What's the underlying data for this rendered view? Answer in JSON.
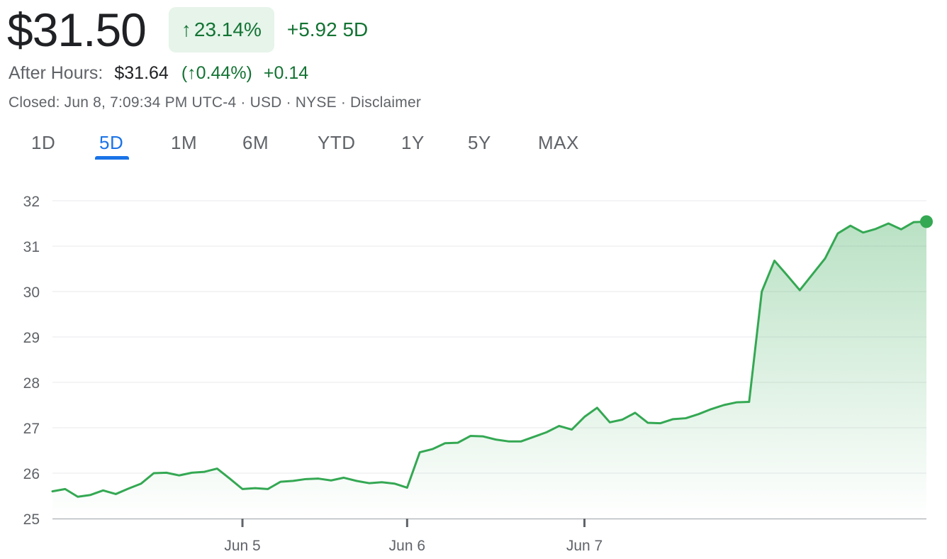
{
  "quote": {
    "price": "$31.50",
    "change_arrow": "↑",
    "change_pct": "23.14%",
    "change_abs": "+5.92 5D",
    "after_hours_label": "After Hours:",
    "after_hours_price": "$31.64",
    "after_hours_pct": "(↑0.44%)",
    "after_hours_change": "+0.14",
    "meta": "Closed: Jun 8, 7:09:34 PM UTC-4 · USD · NYSE · Disclaimer"
  },
  "tabs": [
    "1D",
    "5D",
    "1M",
    "6M",
    "YTD",
    "1Y",
    "5Y",
    "MAX"
  ],
  "active_tab": "5D",
  "colors": {
    "positive": "#137333",
    "line": "#34a853",
    "accent": "#1a73e8",
    "grid": "#e8eaed"
  },
  "chart_data": {
    "type": "area",
    "ylim": [
      25,
      32
    ],
    "y_ticks": [
      "25",
      "26",
      "27",
      "28",
      "29",
      "30",
      "31",
      "32"
    ],
    "x_tick_labels": [
      {
        "label": "Jun 5",
        "at_point": 15
      },
      {
        "label": "Jun 6",
        "at_point": 28
      },
      {
        "label": "Jun 7",
        "at_point": 42
      }
    ],
    "grid": true,
    "series": [
      {
        "values": [
          25.6,
          25.65,
          25.48,
          25.52,
          25.62,
          25.54,
          25.66,
          25.77,
          26.0,
          26.01,
          25.95,
          26.01,
          26.03,
          26.1,
          25.88,
          25.65,
          25.67,
          25.65,
          25.81,
          25.83,
          25.87,
          25.88,
          25.84,
          25.9,
          25.83,
          25.78,
          25.8,
          25.77,
          25.68,
          26.46,
          26.53,
          26.66,
          26.67,
          26.82,
          26.81,
          26.74,
          26.7,
          26.7,
          26.8,
          26.9,
          27.04,
          26.96,
          27.24,
          27.44,
          27.12,
          27.18,
          27.33,
          27.11,
          27.1,
          27.19,
          27.21,
          27.3,
          27.41,
          27.5,
          27.56,
          27.57,
          30.0,
          30.68,
          30.36,
          30.03,
          30.38,
          30.73,
          31.28,
          31.45,
          31.3,
          31.38,
          31.5,
          31.37,
          31.53,
          31.54
        ]
      }
    ]
  }
}
